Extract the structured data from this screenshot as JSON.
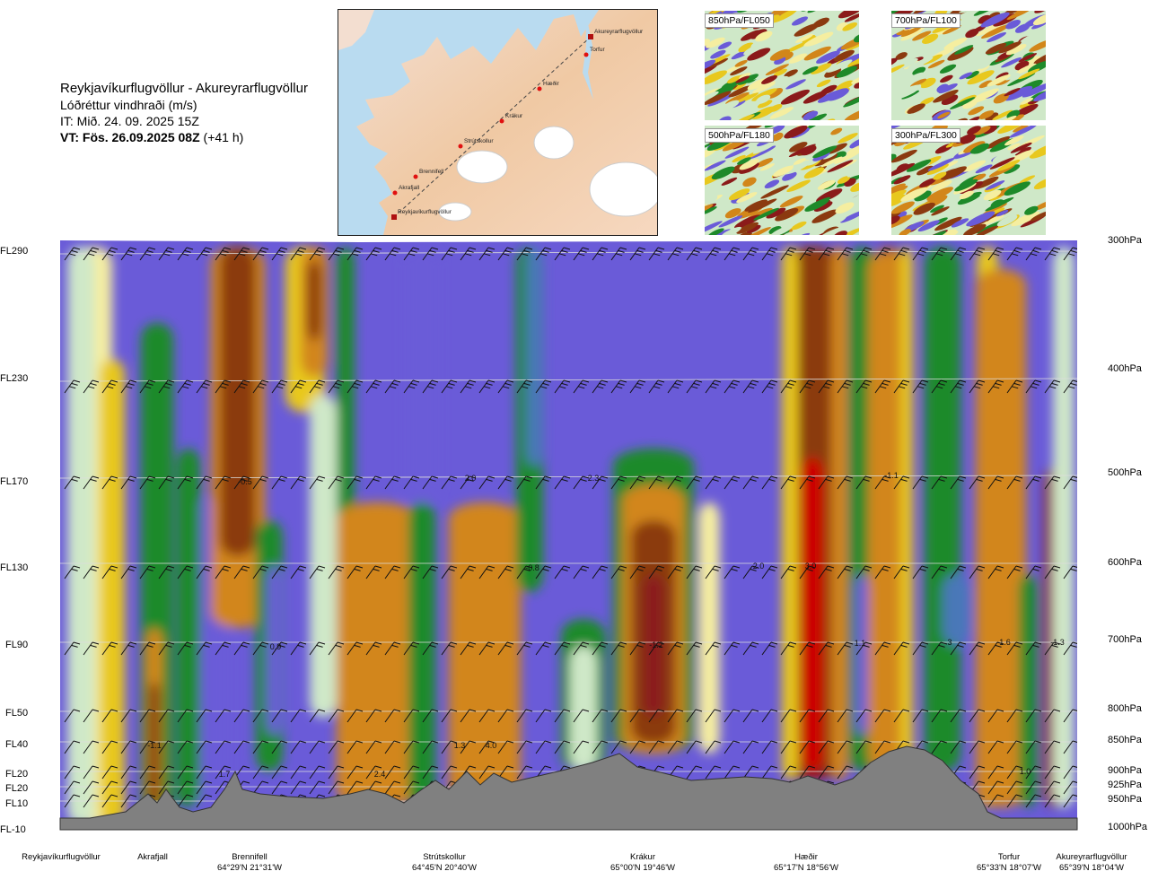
{
  "header": {
    "route": "Reykjavíkurflugvöllur - Akureyrarflugvöllur",
    "variable": "Lóðréttur vindhraði (m/s)",
    "issue_time": "IT: Mið. 24. 09. 2025 15Z",
    "valid_time": "VT: Fös. 26.09.2025 08Z",
    "lead": "(+41 h)"
  },
  "map": {
    "waypoints": [
      "Reykjavíkurflugvöllur",
      "Akrafjall",
      "Brennifell",
      "Strútskollur",
      "Krákur",
      "Hæðir",
      "Torfur",
      "Akureyrarflugvöllur"
    ]
  },
  "thumbnails": [
    {
      "label": "850hPa/FL050"
    },
    {
      "label": "700hPa/FL100"
    },
    {
      "label": "500hPa/FL180"
    },
    {
      "label": "300hPa/FL300"
    }
  ],
  "chart_data": {
    "type": "heatmap",
    "title": "Lóðréttur vindhraði (m/s)",
    "flight_levels": [
      {
        "label": "FL290",
        "pressure": "300hPa"
      },
      {
        "label": "FL230",
        "pressure": "400hPa"
      },
      {
        "label": "FL170",
        "pressure": "500hPa"
      },
      {
        "label": "FL130",
        "pressure": "600hPa"
      },
      {
        "label": "FL90",
        "pressure": "700hPa"
      },
      {
        "label": "FL50",
        "pressure": "800hPa"
      },
      {
        "label": "FL40",
        "pressure": "850hPa"
      },
      {
        "label": "FL20",
        "pressure": "900hPa"
      },
      {
        "label": "FL20",
        "pressure": "925hPa"
      },
      {
        "label": "FL10",
        "pressure": "950hPa"
      },
      {
        "label": "FL-10",
        "pressure": "1000hPa"
      }
    ],
    "stations": [
      {
        "name": "Reykjavíkurflugvöllur",
        "coord": ""
      },
      {
        "name": "Akrafjall",
        "coord": ""
      },
      {
        "name": "Brennifell",
        "coord": "64°29'N 21°31'W"
      },
      {
        "name": "Strútskollur",
        "coord": "64°45'N 20°40'W"
      },
      {
        "name": "Krákur",
        "coord": "65°00'N 19°46'W"
      },
      {
        "name": "Hæðir",
        "coord": "65°17'N 18°56'W"
      },
      {
        "name": "Torfur",
        "coord": "65°33'N 18°07'W"
      },
      {
        "name": "Akureyrarflugvöllur",
        "coord": "65°39'N 18°04'W"
      }
    ],
    "value_labels": [
      {
        "text": "-0.5"
      },
      {
        "text": "2.0"
      },
      {
        "text": "2.3"
      },
      {
        "text": "-1.1"
      },
      {
        "text": "-0.8"
      },
      {
        "text": "2.0"
      },
      {
        "text": "3.0"
      },
      {
        "text": "0.9"
      },
      {
        "text": "-1.2"
      },
      {
        "text": "1.1"
      },
      {
        "text": "3"
      },
      {
        "text": "-1.6"
      },
      {
        "text": "-1.3"
      },
      {
        "text": "-1.1"
      },
      {
        "text": "1.3"
      },
      {
        "text": "4.0"
      },
      {
        "text": "1.7"
      },
      {
        "text": "2.4"
      },
      {
        "text": "1.0"
      }
    ],
    "colors": {
      "strong_up": "#cc0000",
      "up": "#8b1a1a",
      "brown": "#8b3a10",
      "orange": "#d2861a",
      "yellow": "#e8c81e",
      "pale_yellow": "#f5eea0",
      "pale_green": "#cfe8c8",
      "green": "#1e8a2a",
      "dark_green": "#0e6b1a",
      "steel": "#4a78b8",
      "down": "#6a5bd8",
      "terrain": "#808080"
    }
  }
}
